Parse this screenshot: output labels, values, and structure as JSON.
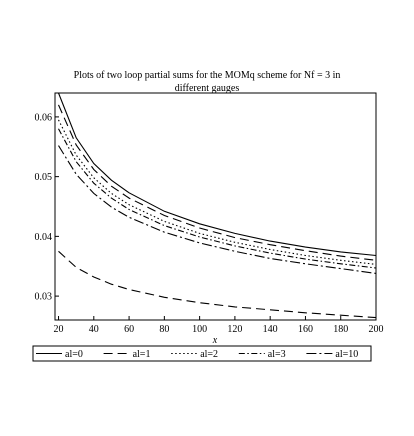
{
  "chart_data": {
    "type": "line",
    "title_lines": [
      "Plots of two loop partial sums for the MOMq scheme for Nf = 3 in",
      "different gauges"
    ],
    "xlabel": "x",
    "ylabel": "",
    "xlim": [
      18,
      200
    ],
    "ylim": [
      0.026,
      0.064
    ],
    "xticks": [
      20,
      40,
      60,
      80,
      100,
      120,
      140,
      160,
      180,
      200
    ],
    "xtick_labels": [
      "20",
      "40",
      "60",
      "80",
      "100",
      "120",
      "140",
      "160",
      "180",
      "200"
    ],
    "yticks": [
      0.03,
      0.04,
      0.05,
      0.06
    ],
    "ytick_labels": [
      "0.03",
      "0.04",
      "0.05",
      "0.06"
    ],
    "grid": false,
    "legend_position": "bottom",
    "x": [
      20,
      30,
      40,
      50,
      60,
      80,
      100,
      120,
      140,
      160,
      180,
      200
    ],
    "series": [
      {
        "name": "al=0",
        "dash": "solid",
        "values": [
          0.064,
          0.0565,
          0.0522,
          0.0494,
          0.0473,
          0.0442,
          0.0421,
          0.0405,
          0.0392,
          0.0382,
          0.0374,
          0.0368
        ]
      },
      {
        "name": "al=1",
        "dash": "long-dash",
        "values": [
          0.062,
          0.0553,
          0.0512,
          0.0484,
          0.0464,
          0.0435,
          0.0414,
          0.0398,
          0.0386,
          0.0376,
          0.0367,
          0.036
        ]
      },
      {
        "name": "al=2",
        "dash": "dot",
        "values": [
          0.0595,
          0.0536,
          0.0498,
          0.0472,
          0.0453,
          0.0425,
          0.0405,
          0.039,
          0.0378,
          0.0368,
          0.036,
          0.0353
        ]
      },
      {
        "name": "al=3",
        "dash": "dash-dot",
        "values": [
          0.058,
          0.0525,
          0.0489,
          0.0464,
          0.0445,
          0.0418,
          0.0399,
          0.0384,
          0.0372,
          0.0362,
          0.0354,
          0.0347
        ]
      },
      {
        "name": "al=10",
        "dash": "long-dash-dot",
        "values": [
          0.0552,
          0.0504,
          0.0472,
          0.0449,
          0.0432,
          0.0407,
          0.0389,
          0.0375,
          0.0363,
          0.0354,
          0.0346,
          0.0338
        ]
      },
      {
        "name": "",
        "dash": "long-dash",
        "values": [
          0.0375,
          0.0348,
          0.0332,
          0.032,
          0.0311,
          0.0298,
          0.0289,
          0.0282,
          0.0277,
          0.0272,
          0.0268,
          0.0264
        ]
      }
    ],
    "legend": [
      "al=0",
      "al=1",
      "al=2",
      "al=3",
      "al=10"
    ]
  }
}
